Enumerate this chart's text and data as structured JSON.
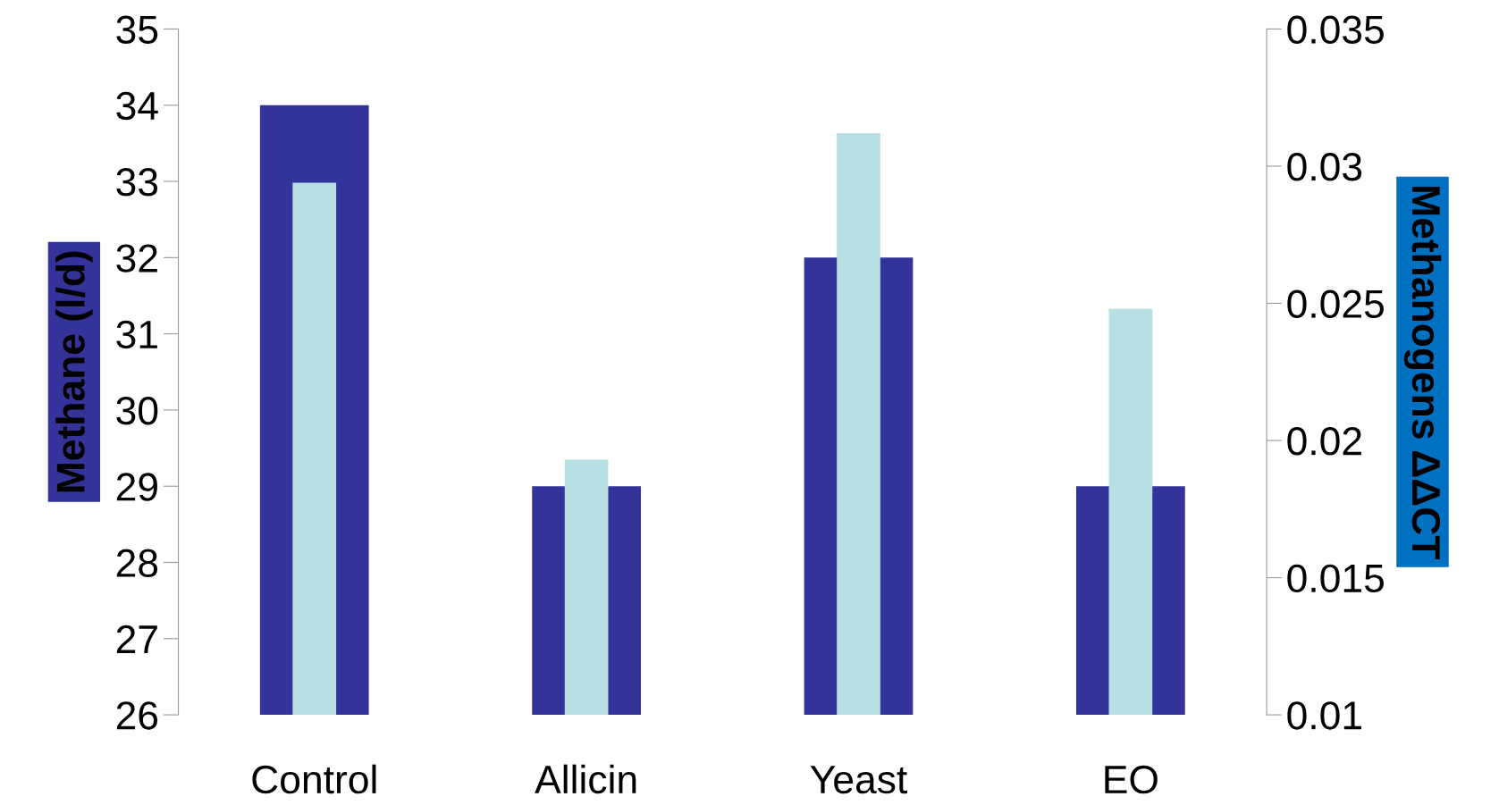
{
  "chart_data": {
    "type": "bar",
    "categories": [
      "Control",
      "Allicin",
      "Yeast",
      "EO"
    ],
    "ylabel": "Methane (l/d)",
    "y2label": "Methanogens ΔΔCT",
    "ylim": [
      26,
      35
    ],
    "yticks": [
      26,
      27,
      28,
      29,
      30,
      31,
      32,
      33,
      34,
      35
    ],
    "y2lim": [
      0.01,
      0.035
    ],
    "y2ticks": [
      0.01,
      0.015,
      0.02,
      0.025,
      0.03,
      0.035
    ],
    "grid": false,
    "series": [
      {
        "color": "#333399",
        "values": [
          34,
          29,
          32,
          29
        ]
      },
      {
        "color": "#b8e0e4",
        "values": [
          0.0294,
          0.0193,
          0.0312,
          0.0248
        ],
        "axis": "y2"
      }
    ]
  }
}
